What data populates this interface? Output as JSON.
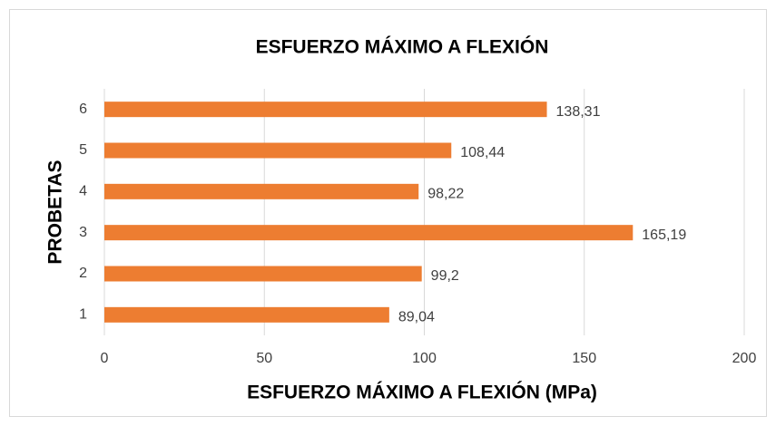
{
  "chart_data": {
    "type": "hbar",
    "title": "ESFUERZO MÁXIMO A FLEXIÓN",
    "x_label": "ESFUERZO MÁXIMO A FLEXIÓN (MPa)",
    "y_label": "PROBETAS",
    "categories": [
      "1",
      "2",
      "3",
      "4",
      "5",
      "6"
    ],
    "values": [
      89.04,
      99.2,
      165.19,
      98.22,
      108.44,
      138.31
    ],
    "value_labels": [
      "89,04",
      "99,2",
      "165,19",
      "98,22",
      "108,44",
      "138,31"
    ],
    "color": "#ed7d31",
    "xlim": [
      0,
      200
    ],
    "xticks": [
      0,
      50,
      100,
      150,
      200
    ],
    "grid": true
  }
}
